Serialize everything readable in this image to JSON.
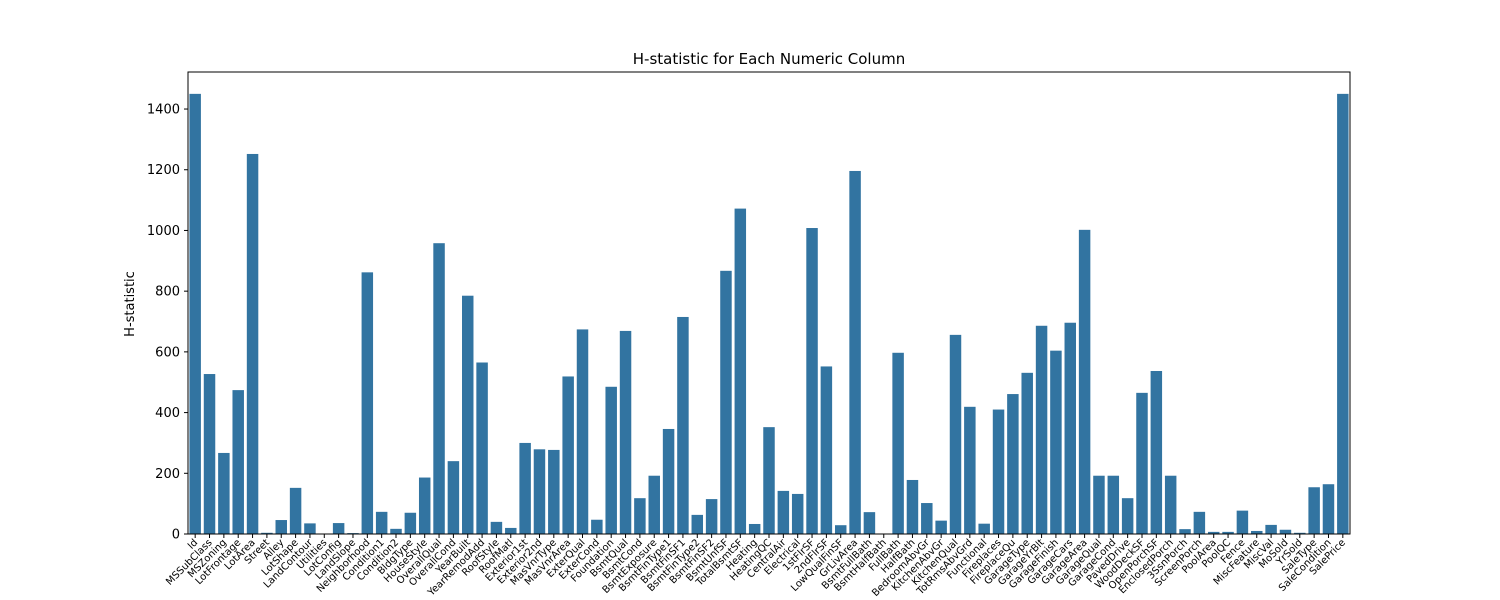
{
  "chart_data": {
    "type": "bar",
    "title": "H-statistic for Each Numeric Column",
    "xlabel": "",
    "ylabel": "H-statistic",
    "ylim": [
      0,
      1522
    ],
    "yticks": [
      0,
      200,
      400,
      600,
      800,
      1000,
      1200,
      1400
    ],
    "grid": false,
    "bar_color": "#3274a1",
    "categories": [
      "Id",
      "MSSubClass",
      "MSZoning",
      "LotFrontage",
      "LotArea",
      "Street",
      "Alley",
      "LotShape",
      "LandContour",
      "Utilities",
      "LotConfig",
      "LandSlope",
      "Neighborhood",
      "Condition1",
      "Condition2",
      "BldgType",
      "HouseStyle",
      "OverallQual",
      "OverallCond",
      "YearBuilt",
      "YearRemodAdd",
      "RoofStyle",
      "RoofMatl",
      "Exterior1st",
      "Exterior2nd",
      "MasVnrType",
      "MasVnrArea",
      "ExterQual",
      "ExterCond",
      "Foundation",
      "BsmtQual",
      "BsmtCond",
      "BsmtExposure",
      "BsmtFinType1",
      "BsmtFinSF1",
      "BsmtFinType2",
      "BsmtFinSF2",
      "BsmtUnfSF",
      "TotalBsmtSF",
      "Heating",
      "HeatingQC",
      "CentralAir",
      "Electrical",
      "1stFlrSF",
      "2ndFlrSF",
      "LowQualFinSF",
      "GrLivArea",
      "BsmtFullBath",
      "BsmtHalfBath",
      "FullBath",
      "HalfBath",
      "BedroomAbvGr",
      "KitchenAbvGr",
      "KitchenQual",
      "TotRmsAbvGrd",
      "Functional",
      "Fireplaces",
      "FireplaceQu",
      "GarageType",
      "GarageYrBlt",
      "GarageFinish",
      "GarageCars",
      "GarageArea",
      "GarageQual",
      "GarageCond",
      "PavedDrive",
      "WoodDeckSF",
      "OpenPorchSF",
      "EnclosedPorch",
      "3SsnPorch",
      "ScreenPorch",
      "PoolArea",
      "PoolQC",
      "Fence",
      "MiscFeature",
      "MiscVal",
      "MoSold",
      "YrSold",
      "SaleType",
      "SaleCondition",
      "SalePrice"
    ],
    "values": [
      1450,
      527,
      267,
      474,
      1252,
      4,
      46,
      152,
      35,
      1,
      36,
      3,
      862,
      73,
      17,
      70,
      186,
      958,
      240,
      785,
      565,
      40,
      20,
      300,
      279,
      277,
      519,
      674,
      47,
      485,
      669,
      118,
      192,
      346,
      715,
      63,
      115,
      867,
      1072,
      33,
      352,
      142,
      132,
      1008,
      552,
      29,
      1196,
      72,
      1,
      597,
      178,
      102,
      44,
      656,
      419,
      34,
      410,
      461,
      531,
      686,
      604,
      696,
      1002,
      192,
      192,
      118,
      465,
      537,
      192,
      16,
      73,
      7,
      7,
      77,
      10,
      30,
      14,
      4,
      154,
      164,
      1450
    ]
  }
}
